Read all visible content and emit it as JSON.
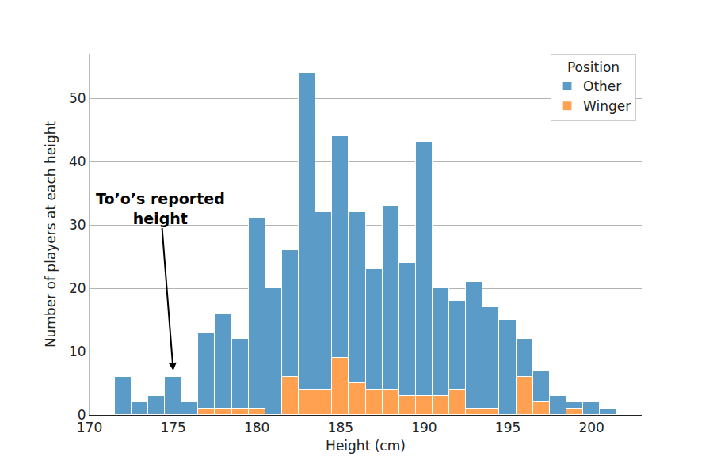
{
  "chart_data": {
    "type": "histogram",
    "xlabel": "Height (cm)",
    "ylabel": "Number of players at each height",
    "legend_title": "Position",
    "legend": "upper right",
    "stacked": true,
    "grid": true,
    "bins": [
      171.5,
      172.5,
      173.5,
      174.5,
      175.5,
      176.5,
      177.5,
      178.5,
      179.5,
      180.5,
      181.5,
      182.5,
      183.5,
      184.5,
      185.5,
      186.5,
      187.5,
      188.5,
      189.5,
      190.5,
      191.5,
      192.5,
      193.5,
      194.5,
      195.5,
      196.5,
      197.5,
      198.5,
      199.5,
      200.5,
      201.5
    ],
    "series": [
      {
        "name": "Other",
        "color": "#5b9bc8",
        "values": [
          6,
          2,
          3,
          6,
          2,
          12,
          15,
          11,
          30,
          20,
          20,
          50,
          28,
          35,
          27,
          19,
          29,
          21,
          40,
          17,
          14,
          20,
          16,
          15,
          6,
          5,
          3,
          1,
          2,
          1
        ]
      },
      {
        "name": "Winger",
        "color": "#ffa150",
        "values": [
          0,
          0,
          0,
          0,
          0,
          1,
          1,
          1,
          1,
          0,
          6,
          4,
          4,
          9,
          5,
          4,
          4,
          3,
          3,
          3,
          4,
          1,
          1,
          0,
          6,
          2,
          0,
          1,
          0,
          0
        ]
      }
    ],
    "xlim": [
      170,
      203
    ],
    "xticks": [
      170,
      175,
      180,
      185,
      190,
      195,
      200
    ],
    "ylim": [
      0,
      57
    ],
    "yticks": [
      0,
      10,
      20,
      30,
      40,
      50
    ],
    "annotations": [
      {
        "text": "To’o’s reported\nheight",
        "x": 175,
        "y": 7
      }
    ]
  }
}
